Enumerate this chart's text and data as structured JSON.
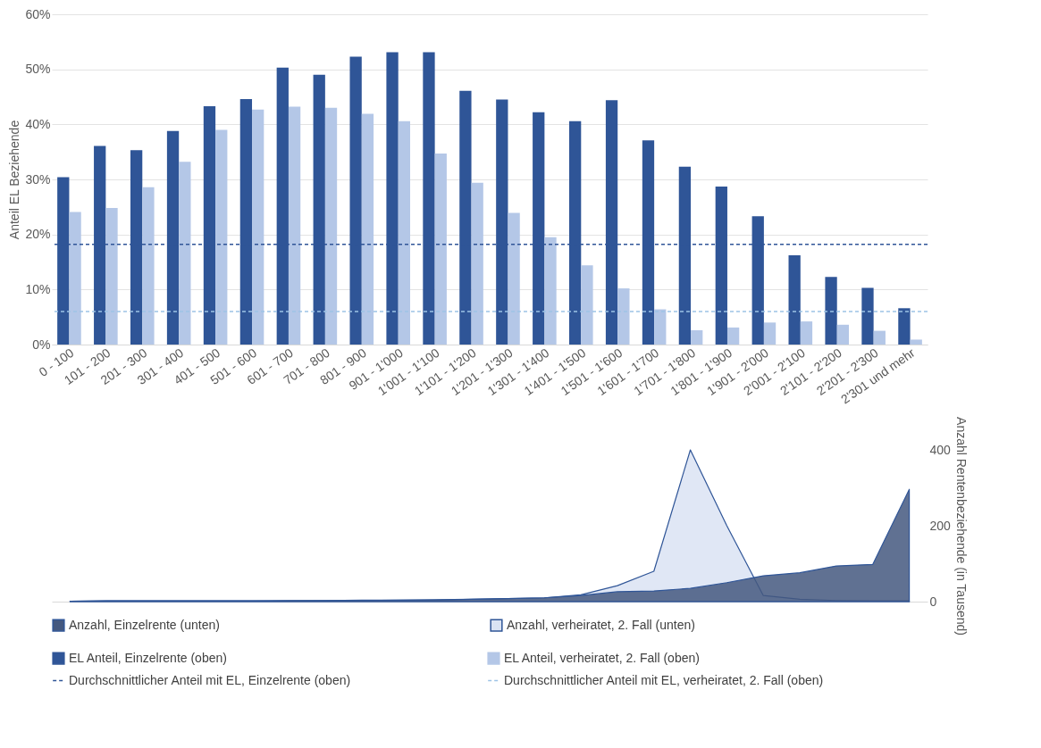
{
  "chart_data": [
    {
      "type": "bar",
      "ylabel": "Anteil EL Beziehende",
      "categories": [
        "0 - 100",
        "101 - 200",
        "201 - 300",
        "301 - 400",
        "401 - 500",
        "501 - 600",
        "601 - 700",
        "701 - 800",
        "801 - 900",
        "901 - 1'000",
        "1'001 - 1'100",
        "1'101 - 1'200",
        "1'201 - 1'300",
        "1'301 - 1'400",
        "1'401 - 1'500",
        "1'501 - 1'600",
        "1'601 - 1'700",
        "1'701 - 1'800",
        "1'801 - 1'900",
        "1'901 - 2'000",
        "2'001 - 2'100",
        "2'101 - 2'200",
        "2'201 - 2'300",
        "2'301 und mehr"
      ],
      "series": [
        {
          "name": "EL Anteil, Einzelrente (oben)",
          "color": "#2f5597",
          "values": [
            30.4,
            36.1,
            35.3,
            38.8,
            43.3,
            44.6,
            50.3,
            49.0,
            52.3,
            53.1,
            53.1,
            46.1,
            44.5,
            42.2,
            40.6,
            44.4,
            37.1,
            32.3,
            28.7,
            23.3,
            16.2,
            12.3,
            10.3,
            6.6
          ]
        },
        {
          "name": "EL Anteil, verheiratet, 2. Fall (oben)",
          "color": "#b4c7e7",
          "values": [
            24.1,
            24.8,
            28.6,
            33.2,
            39.0,
            42.7,
            43.2,
            43.0,
            41.9,
            40.6,
            34.7,
            29.4,
            23.9,
            19.5,
            14.4,
            10.2,
            6.4,
            2.6,
            3.1,
            4.0,
            4.2,
            3.6,
            2.5,
            0.9
          ]
        }
      ],
      "ref_lines": [
        {
          "axis": "y",
          "value": 18.2,
          "label": "Durchschnittlicher Anteil mit EL, Einzelrente (oben)",
          "color": "#2f5597",
          "line_style": "dashed"
        },
        {
          "axis": "y",
          "value": 6.0,
          "label": "Durchschnittlicher Anteil mit EL, verheiratet, 2. Fall (oben)",
          "color": "#9dc3e6",
          "line_style": "dashed"
        }
      ],
      "ylim": [
        0,
        60
      ],
      "yticks": [
        {
          "value": 0,
          "label": "0%"
        },
        {
          "value": 10,
          "label": "10%"
        },
        {
          "value": 20,
          "label": "20%"
        },
        {
          "value": 30,
          "label": "30%"
        },
        {
          "value": 40,
          "label": "40%"
        },
        {
          "value": 50,
          "label": "50%"
        },
        {
          "value": 60,
          "label": "60%"
        }
      ],
      "grid": "y",
      "legend": "bottom"
    },
    {
      "type": "area",
      "ylabel": "Anzahl Rentenbeziehende (in Tausend)",
      "categories": [
        null,
        null,
        null,
        null,
        null,
        null,
        null,
        null,
        null,
        null,
        null,
        null,
        null,
        null,
        null,
        null,
        null,
        null,
        null,
        null,
        null,
        null,
        null,
        null
      ],
      "series": [
        {
          "name": "Anzahl, Einzelrente (unten)",
          "color": "#44587f",
          "values": [
            1,
            2,
            2,
            2,
            2,
            2,
            3,
            3,
            4,
            4,
            5,
            6,
            8,
            10,
            16,
            26,
            28,
            35,
            50,
            68,
            76,
            94,
            98,
            296
          ]
        },
        {
          "name": "Anzahl, verheiratet, 2. Fall (unten)",
          "color": "#dae3f3",
          "values": [
            1,
            2,
            2,
            2,
            2,
            2,
            2,
            3,
            3,
            4,
            4,
            6,
            8,
            10,
            18,
            42,
            80,
            400,
            200,
            16,
            6,
            3,
            2,
            2
          ]
        }
      ],
      "ylim": [
        0,
        400
      ],
      "yticks": [
        0,
        200,
        400
      ],
      "tick_labels": "y",
      "legend": "bottom"
    }
  ]
}
